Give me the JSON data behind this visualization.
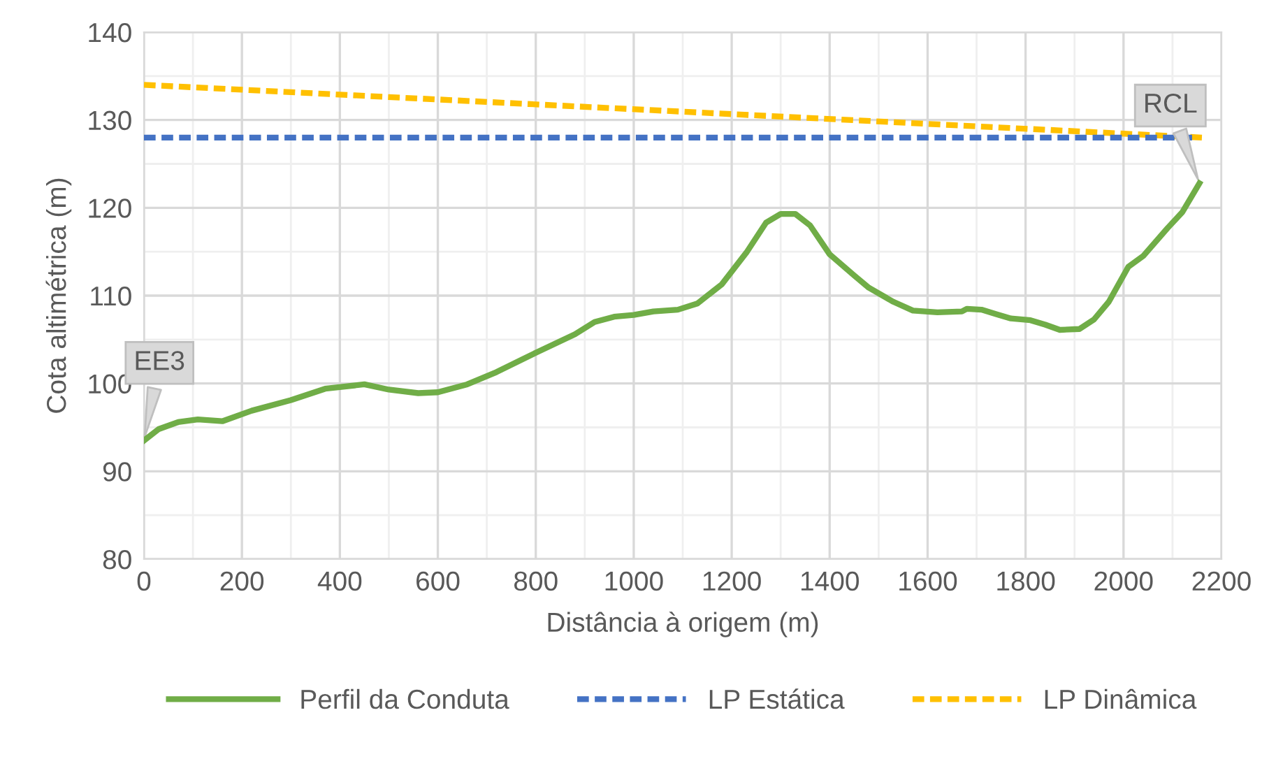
{
  "chart_data": {
    "type": "line",
    "xlabel": "Distância à origem (m)",
    "ylabel": "Cota altimétrica (m)",
    "xlim": [
      0,
      2200
    ],
    "xticks": [
      0,
      200,
      400,
      600,
      800,
      1000,
      1200,
      1400,
      1600,
      1800,
      2000,
      2200
    ],
    "ylim": [
      80,
      140
    ],
    "yticks": [
      80,
      90,
      100,
      110,
      120,
      130,
      140
    ],
    "grid": true,
    "legend": "bottom",
    "marker": "none",
    "series": [
      {
        "name": "Perfil da Conduta",
        "color": "#70ad47",
        "line_style": "solid",
        "x": [
          0,
          30,
          70,
          110,
          160,
          220,
          300,
          370,
          450,
          500,
          560,
          600,
          660,
          720,
          800,
          880,
          920,
          960,
          1000,
          1040,
          1090,
          1130,
          1180,
          1230,
          1270,
          1300,
          1330,
          1360,
          1400,
          1450,
          1480,
          1530,
          1570,
          1620,
          1670,
          1680,
          1710,
          1740,
          1770,
          1810,
          1840,
          1870,
          1910,
          1940,
          1970,
          2010,
          2040,
          2090,
          2120,
          2155
        ],
        "values": [
          93.5,
          94.8,
          95.6,
          95.9,
          95.7,
          96.9,
          98.1,
          99.4,
          99.9,
          99.3,
          98.9,
          99.0,
          99.9,
          101.3,
          103.5,
          105.6,
          107.0,
          107.6,
          107.8,
          108.2,
          108.4,
          109.1,
          111.3,
          114.9,
          118.3,
          119.3,
          119.3,
          118.0,
          114.7,
          112.3,
          110.9,
          109.3,
          108.3,
          108.1,
          108.2,
          108.5,
          108.4,
          107.9,
          107.4,
          107.2,
          106.7,
          106.1,
          106.2,
          107.3,
          109.3,
          113.3,
          114.5,
          117.7,
          119.5,
          122.8
        ]
      },
      {
        "name": "LP Estática",
        "color": "#4472c4",
        "line_style": "dashed",
        "x": [
          0,
          2140
        ],
        "values": [
          128,
          128
        ]
      },
      {
        "name": "LP Dinâmica",
        "color": "#ffc000",
        "line_style": "dashed",
        "x": [
          0,
          2160
        ],
        "values": [
          134,
          128
        ]
      }
    ],
    "annotations": [
      {
        "text": "EE3",
        "x": 0,
        "y": 93.5
      },
      {
        "text": "RCL",
        "x": 2155,
        "y": 122.8
      }
    ]
  }
}
